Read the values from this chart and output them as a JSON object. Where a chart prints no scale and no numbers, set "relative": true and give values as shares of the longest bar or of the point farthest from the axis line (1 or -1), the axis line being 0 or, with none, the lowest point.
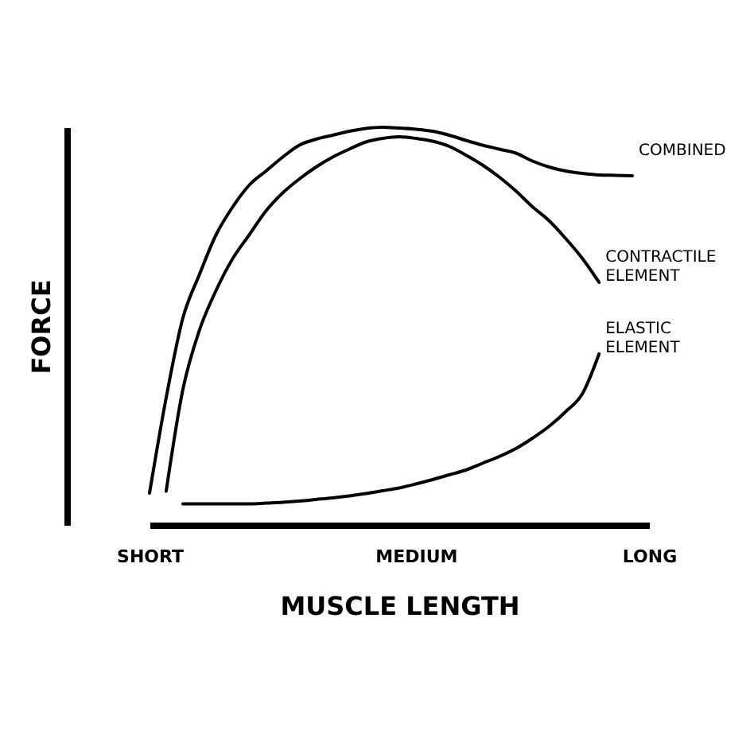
{
  "chart_data": {
    "type": "line",
    "relative": true,
    "xlabel": "MUSCLE LENGTH",
    "ylabel": "FORCE",
    "legend": false,
    "grid": false,
    "marker": "none",
    "line_style": "solid",
    "categories": [
      "SHORT",
      null,
      null,
      null,
      null,
      null,
      null,
      null,
      null,
      null,
      null,
      null,
      null,
      null,
      null,
      null,
      "MEDIUM",
      null,
      null,
      null,
      null,
      null,
      null,
      null,
      null,
      null,
      null,
      null,
      null,
      null,
      "LONG"
    ],
    "series": [
      {
        "name": "COMBINED",
        "color": "#000000",
        "values": [
          0.08,
          0.32,
          0.52,
          0.63,
          0.73,
          0.8,
          0.855,
          0.89,
          0.925,
          0.955,
          0.97,
          0.98,
          0.99,
          0.997,
          1.0,
          0.998,
          0.995,
          0.99,
          0.98,
          0.967,
          0.955,
          0.945,
          0.935,
          0.915,
          0.9,
          0.89,
          0.884,
          0.88,
          0.879,
          0.878,
          null
        ]
      },
      {
        "name": "CONTRACTILE ELEMENT",
        "color": "#000000",
        "values": [
          null,
          0.085,
          0.34,
          0.49,
          0.59,
          0.67,
          0.73,
          0.79,
          0.835,
          0.87,
          0.9,
          0.925,
          0.945,
          0.963,
          0.972,
          0.976,
          0.972,
          0.965,
          0.952,
          0.93,
          0.905,
          0.875,
          0.84,
          0.8,
          0.765,
          0.72,
          0.67,
          0.61,
          null,
          null,
          null
        ]
      },
      {
        "name": "ELASTIC ELEMENT",
        "color": "#000000",
        "values": [
          null,
          null,
          0.053,
          0.053,
          0.053,
          0.053,
          0.053,
          0.055,
          0.057,
          0.06,
          0.064,
          0.068,
          0.073,
          0.079,
          0.086,
          0.093,
          0.103,
          0.114,
          0.126,
          0.138,
          0.155,
          0.172,
          0.192,
          0.218,
          0.248,
          0.285,
          0.33,
          0.43,
          null,
          null,
          null
        ]
      }
    ]
  }
}
